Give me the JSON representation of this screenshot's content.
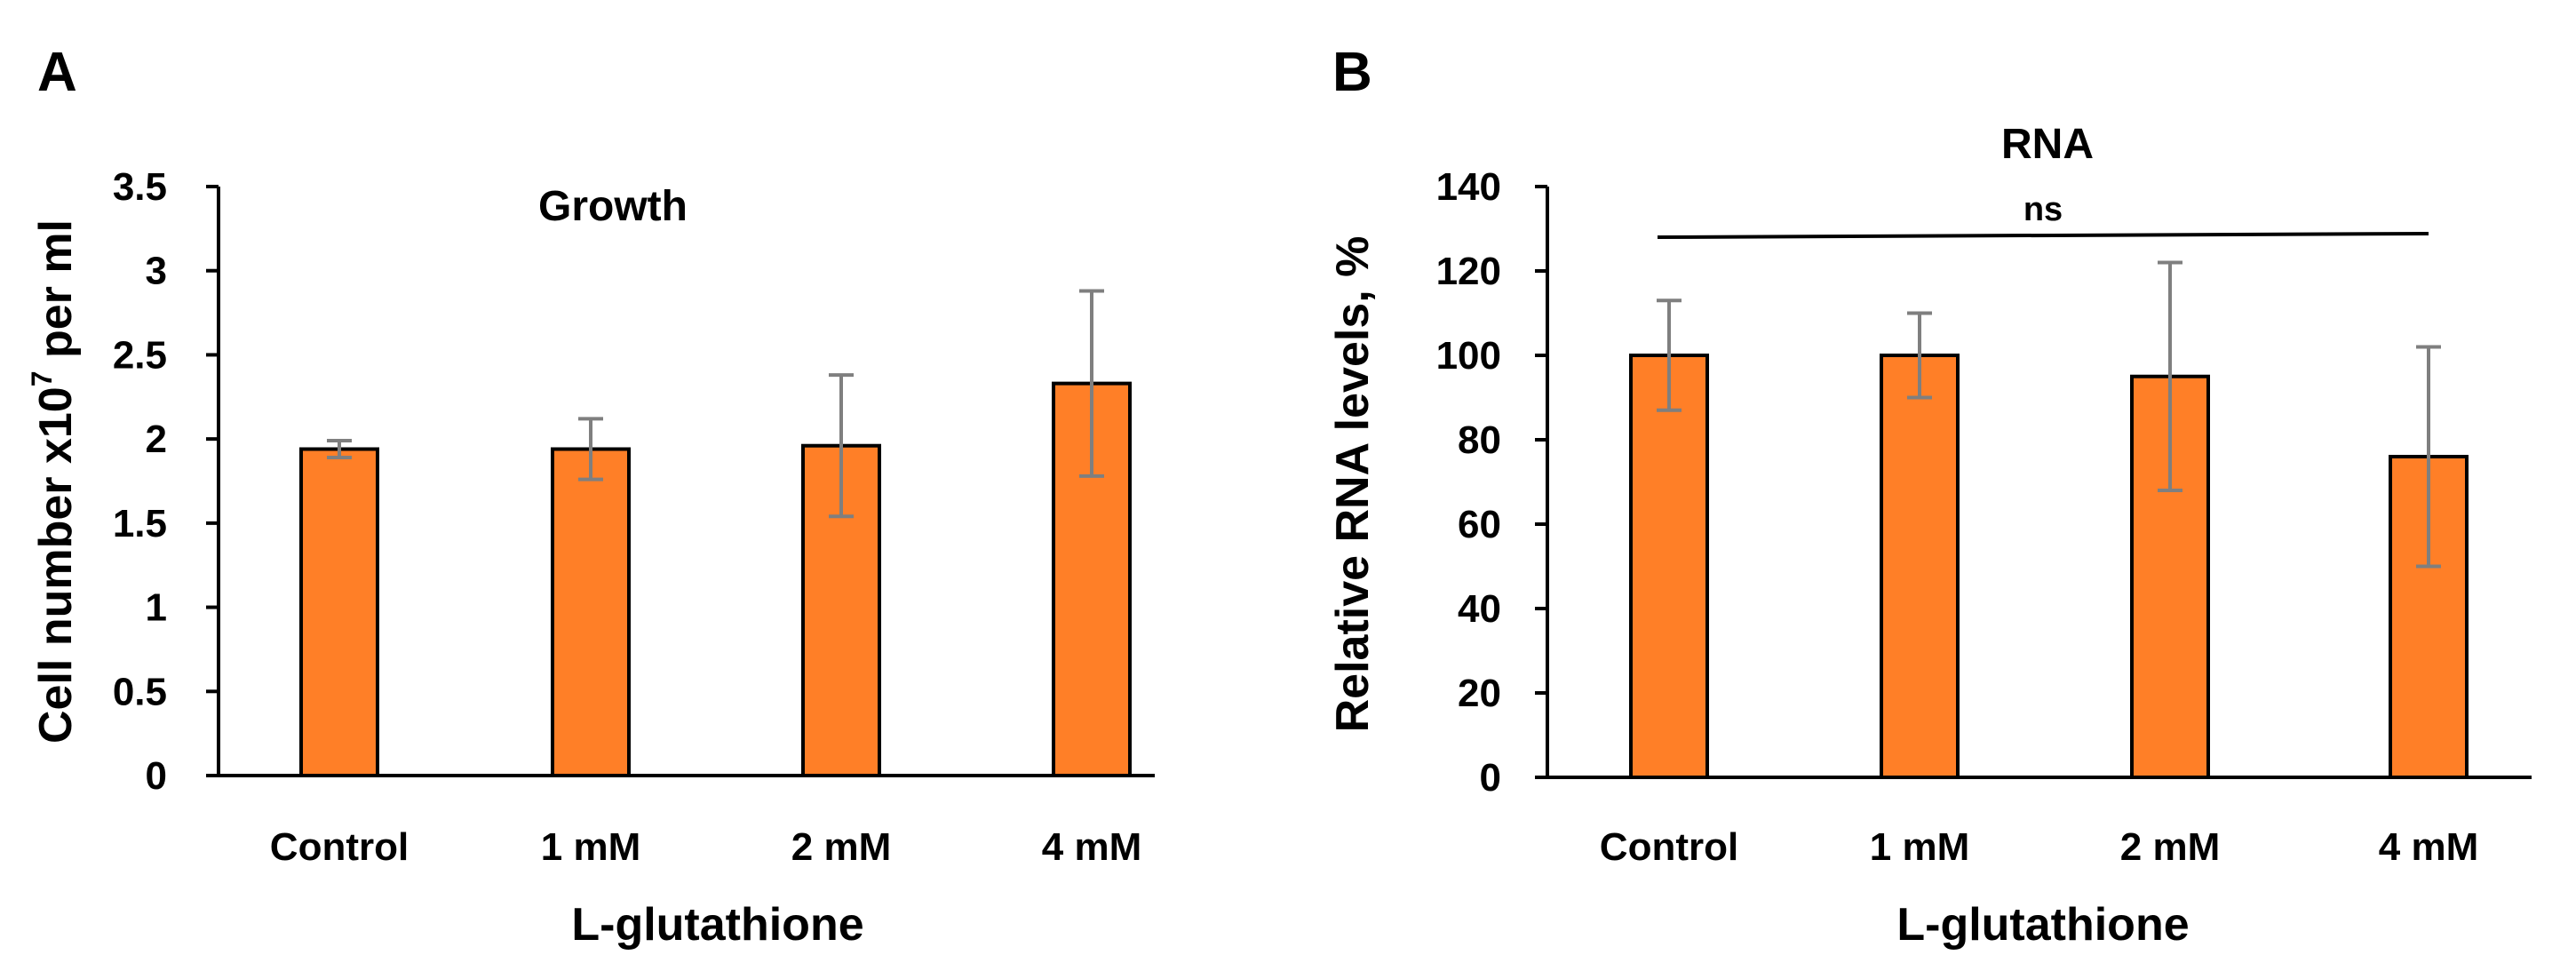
{
  "chart_data": [
    {
      "panel": "A",
      "type": "bar",
      "title": "Growth",
      "xlabel": "L-glutathione",
      "ylabel": "Cell number x10",
      "ylabel_superscript": "7",
      "ylabel_suffix": " per ml",
      "categories": [
        "Control",
        "1 mM",
        "2 mM",
        "4 mM"
      ],
      "values": [
        1.94,
        1.94,
        1.96,
        2.33
      ],
      "errors": [
        0.05,
        0.18,
        0.42,
        0.55
      ],
      "ylim": [
        0,
        3.5
      ],
      "yticks": [
        "0",
        "0.5",
        "1",
        "1.5",
        "2",
        "2.5",
        "3",
        "3.5"
      ],
      "bar_color": "#FF7F27",
      "error_color": "#7F7F7F"
    },
    {
      "panel": "B",
      "type": "bar",
      "title": "RNA",
      "xlabel": "L-glutathione",
      "ylabel": "Relative RNA levels, %",
      "categories": [
        "Control",
        "1 mM",
        "2 mM",
        "4 mM"
      ],
      "values": [
        100,
        100,
        95,
        76
      ],
      "errors": [
        13,
        10,
        27,
        26
      ],
      "ylim": [
        0,
        140
      ],
      "yticks": [
        "0",
        "20",
        "40",
        "60",
        "80",
        "100",
        "120",
        "140"
      ],
      "annotation": "ns",
      "bar_color": "#FF7F27",
      "error_color": "#7F7F7F"
    }
  ]
}
